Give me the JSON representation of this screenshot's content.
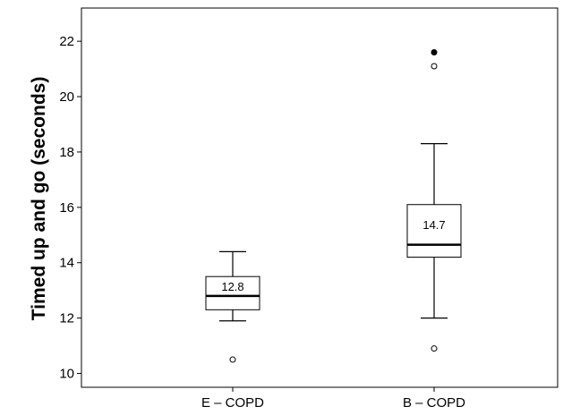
{
  "chart_data": {
    "type": "box",
    "title": "",
    "xlabel": "",
    "ylabel": "Timed up and go (seconds)",
    "ylim": [
      9.5,
      23.2
    ],
    "yticks": [
      10,
      12,
      14,
      16,
      18,
      20,
      22
    ],
    "grid": false,
    "categories": [
      "E – COPD",
      "B – COPD"
    ],
    "series": [
      {
        "category": "E – COPD",
        "whisker_low": 11.9,
        "q1": 12.3,
        "median": 12.8,
        "q3": 13.5,
        "whisker_high": 14.4,
        "median_label": "12.8",
        "outliers": [
          10.5
        ],
        "extremes": []
      },
      {
        "category": "B – COPD",
        "whisker_low": 12.0,
        "q1": 14.2,
        "median": 14.65,
        "q3": 16.1,
        "whisker_high": 18.3,
        "median_label": "14.7",
        "outliers": [
          10.9,
          21.1
        ],
        "extremes": [
          21.6
        ]
      }
    ]
  }
}
